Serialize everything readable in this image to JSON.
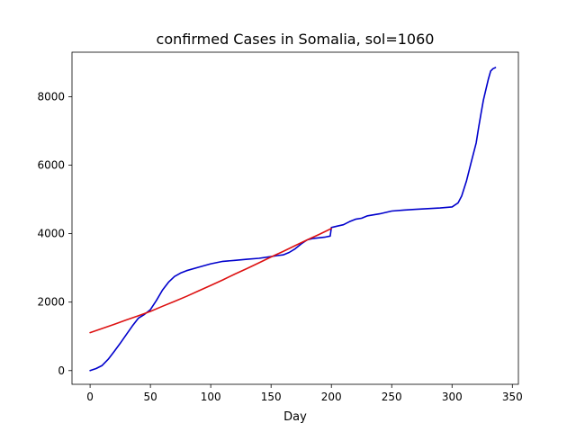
{
  "chart_data": {
    "type": "line",
    "title": "confirmed Cases in Somalia, sol=1060",
    "xlabel": "Day",
    "ylabel": "",
    "xlim": [
      -15,
      355
    ],
    "ylim": [
      -400,
      9300
    ],
    "xticks": [
      0,
      50,
      100,
      150,
      200,
      250,
      300,
      350
    ],
    "yticks": [
      0,
      2000,
      4000,
      6000,
      8000
    ],
    "grid": false,
    "legend": "none",
    "series": [
      {
        "color": "#0000cc",
        "x": [
          0,
          5,
          10,
          15,
          20,
          25,
          30,
          35,
          40,
          45,
          50,
          55,
          60,
          65,
          70,
          75,
          80,
          90,
          100,
          110,
          120,
          130,
          140,
          150,
          155,
          160,
          165,
          170,
          175,
          180,
          185,
          190,
          195,
          199,
          200,
          205,
          210,
          215,
          220,
          225,
          230,
          240,
          250,
          260,
          270,
          280,
          290,
          300,
          305,
          308,
          312,
          316,
          320,
          322,
          324,
          326,
          328,
          330,
          332,
          334,
          336
        ],
        "y": [
          0,
          60,
          150,
          330,
          560,
          800,
          1050,
          1300,
          1530,
          1640,
          1780,
          2050,
          2350,
          2580,
          2750,
          2850,
          2920,
          3020,
          3120,
          3190,
          3220,
          3250,
          3280,
          3330,
          3360,
          3380,
          3450,
          3560,
          3700,
          3820,
          3860,
          3880,
          3900,
          3930,
          4180,
          4220,
          4260,
          4350,
          4420,
          4450,
          4520,
          4580,
          4660,
          4690,
          4710,
          4730,
          4750,
          4780,
          4900,
          5100,
          5550,
          6100,
          6650,
          7100,
          7500,
          7900,
          8200,
          8500,
          8750,
          8820,
          8850
        ]
      },
      {
        "color": "#dd1111",
        "x": [
          0,
          10,
          20,
          30,
          40,
          50,
          60,
          70,
          80,
          90,
          100,
          110,
          120,
          130,
          140,
          150,
          160,
          170,
          180,
          190,
          200
        ],
        "y": [
          1110,
          1230,
          1350,
          1480,
          1600,
          1730,
          1880,
          2020,
          2170,
          2330,
          2490,
          2650,
          2820,
          2980,
          3150,
          3320,
          3480,
          3650,
          3820,
          3980,
          4150
        ]
      }
    ]
  }
}
